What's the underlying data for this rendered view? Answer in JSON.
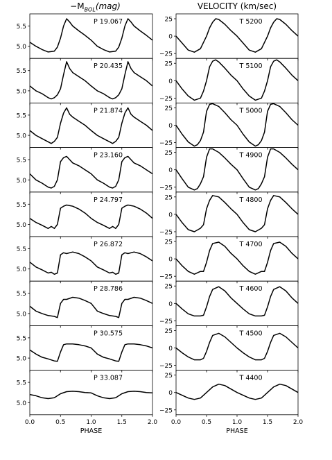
{
  "figure": {
    "left_title_prefix": "−M",
    "left_title_sub": "BOL",
    "left_title_suffix": "(mag)",
    "right_title": "VELOCITY (km/sec)",
    "x_label": "PHASE"
  },
  "colors": {
    "line": "#000000",
    "axes": "#000000",
    "background": "#ffffff"
  },
  "chart_data": [
    {
      "type": "line",
      "title": "−M_BOL(mag)",
      "xlabel": "PHASE",
      "xlim": [
        0.0,
        2.0
      ],
      "xticks": [
        "0.0",
        "0.5",
        "1.0",
        "1.5",
        "2.0"
      ],
      "yticks": [
        "5.0",
        "5.5"
      ],
      "ylim": [
        4.7,
        5.8
      ],
      "grid": false,
      "panels": [
        {
          "label": "P 19.067",
          "x": [
            0.0,
            0.1,
            0.2,
            0.3,
            0.4,
            0.45,
            0.5,
            0.55,
            0.6,
            0.65,
            0.7,
            0.8,
            0.9,
            1.0,
            1.1,
            1.2,
            1.3
          ],
          "y": [
            5.1,
            5.0,
            4.92,
            4.86,
            4.88,
            4.98,
            5.2,
            5.5,
            5.68,
            5.6,
            5.5,
            5.38,
            5.27,
            5.15,
            5.05,
            4.95,
            4.86
          ]
        },
        {
          "label": "P 20.435",
          "x": [
            0.0,
            0.1,
            0.2,
            0.3,
            0.35,
            0.4,
            0.45,
            0.5,
            0.55,
            0.6,
            0.65,
            0.7,
            0.8,
            0.9,
            1.0,
            1.1,
            1.2,
            1.3
          ],
          "y": [
            5.12,
            5.0,
            4.93,
            4.83,
            4.8,
            4.83,
            4.9,
            5.05,
            5.4,
            5.72,
            5.55,
            5.45,
            5.35,
            5.25,
            5.12,
            5.0,
            4.9,
            4.8
          ]
        },
        {
          "label": "P 21.874",
          "x": [
            0.0,
            0.1,
            0.2,
            0.3,
            0.35,
            0.4,
            0.45,
            0.5,
            0.55,
            0.6,
            0.65,
            0.7,
            0.8,
            0.9,
            1.0,
            1.1,
            1.2,
            1.35
          ],
          "y": [
            5.12,
            5.0,
            4.92,
            4.84,
            4.8,
            4.85,
            4.95,
            5.3,
            5.55,
            5.68,
            5.52,
            5.45,
            5.35,
            5.25,
            5.12,
            5.0,
            4.9,
            4.8
          ]
        },
        {
          "label": "P 23.160",
          "x": [
            0.0,
            0.1,
            0.2,
            0.3,
            0.35,
            0.4,
            0.45,
            0.5,
            0.55,
            0.6,
            0.65,
            0.7,
            0.8,
            0.9,
            1.0,
            1.1,
            1.2,
            1.35
          ],
          "y": [
            5.15,
            5.0,
            4.92,
            4.82,
            4.8,
            4.84,
            5.0,
            5.45,
            5.55,
            5.58,
            5.5,
            5.42,
            5.35,
            5.25,
            5.15,
            5.03,
            4.92,
            4.8
          ]
        },
        {
          "label": "P 24.797",
          "x": [
            0.0,
            0.1,
            0.2,
            0.3,
            0.35,
            0.4,
            0.45,
            0.5,
            0.55,
            0.6,
            0.7,
            0.8,
            0.9,
            1.0,
            1.1,
            1.2,
            1.35
          ],
          "y": [
            5.15,
            5.05,
            4.98,
            4.9,
            4.95,
            4.9,
            5.0,
            5.4,
            5.45,
            5.48,
            5.45,
            5.38,
            5.28,
            5.15,
            5.05,
            4.95,
            4.88
          ]
        },
        {
          "label": "P 26.872",
          "x": [
            0.0,
            0.1,
            0.2,
            0.3,
            0.35,
            0.4,
            0.45,
            0.5,
            0.55,
            0.6,
            0.7,
            0.8,
            0.9,
            1.0,
            1.1,
            1.2,
            1.35
          ],
          "y": [
            5.17,
            5.05,
            4.98,
            4.9,
            4.92,
            4.87,
            4.9,
            5.35,
            5.4,
            5.38,
            5.42,
            5.38,
            5.3,
            5.2,
            5.1,
            5.0,
            4.9
          ]
        },
        {
          "label": "P 28.786",
          "x": [
            0.0,
            0.1,
            0.2,
            0.3,
            0.4,
            0.45,
            0.5,
            0.55,
            0.6,
            0.7,
            0.8,
            0.9,
            1.0,
            1.1,
            1.2,
            1.35
          ],
          "y": [
            5.18,
            5.06,
            5.0,
            4.95,
            4.93,
            4.9,
            5.25,
            5.35,
            5.35,
            5.4,
            5.38,
            5.32,
            5.25,
            5.15,
            5.05,
            4.93
          ]
        },
        {
          "label": "P 30.575",
          "x": [
            0.0,
            0.1,
            0.2,
            0.3,
            0.4,
            0.45,
            0.5,
            0.55,
            0.6,
            0.7,
            0.8,
            0.9,
            1.0,
            1.1,
            1.2,
            1.35
          ],
          "y": [
            5.2,
            5.1,
            5.02,
            4.98,
            4.93,
            4.92,
            5.15,
            5.33,
            5.35,
            5.35,
            5.33,
            5.3,
            5.25,
            5.15,
            5.05,
            4.95
          ]
        },
        {
          "label": "P 33.087",
          "x": [
            0.0,
            0.1,
            0.2,
            0.3,
            0.4,
            0.5,
            0.6,
            0.7,
            0.8,
            0.9,
            1.0,
            1.1,
            1.2,
            1.3
          ],
          "y": [
            5.2,
            5.17,
            5.12,
            5.1,
            5.12,
            5.22,
            5.27,
            5.28,
            5.27,
            5.25,
            5.24,
            5.2,
            5.15,
            5.1
          ]
        }
      ]
    },
    {
      "type": "line",
      "title": "VELOCITY (km/sec)",
      "xlabel": "PHASE",
      "xlim": [
        0.0,
        2.0
      ],
      "xticks": [
        "0.0",
        "0.5",
        "1.0",
        "1.5",
        "2.0"
      ],
      "yticks": [
        "−25",
        "0",
        "25"
      ],
      "ylim": [
        -32,
        32
      ],
      "grid": false,
      "panels": [
        {
          "label": "T 5200",
          "x": [
            0.0,
            0.1,
            0.2,
            0.3,
            0.4,
            0.5,
            0.55,
            0.6,
            0.65,
            0.7,
            0.8,
            0.9,
            1.0,
            1.1,
            1.2,
            1.3
          ],
          "y": [
            0,
            -10,
            -20,
            -23,
            -18,
            0,
            12,
            20,
            25,
            24,
            17,
            8,
            0,
            -10,
            -20,
            -23
          ]
        },
        {
          "label": "T 5100",
          "x": [
            0.0,
            0.1,
            0.2,
            0.3,
            0.4,
            0.45,
            0.5,
            0.55,
            0.6,
            0.65,
            0.7,
            0.8,
            0.9,
            1.0,
            1.1,
            1.2,
            1.3
          ],
          "y": [
            0,
            -12,
            -22,
            -28,
            -25,
            -15,
            0,
            20,
            28,
            30,
            27,
            18,
            8,
            0,
            -12,
            -22,
            -28
          ]
        },
        {
          "label": "T 5000",
          "x": [
            0.0,
            0.1,
            0.2,
            0.3,
            0.35,
            0.4,
            0.45,
            0.5,
            0.55,
            0.6,
            0.7,
            0.8,
            0.9,
            1.0,
            1.1,
            1.2,
            1.3
          ],
          "y": [
            0,
            -13,
            -24,
            -30,
            -28,
            -22,
            -10,
            20,
            30,
            31,
            27,
            18,
            8,
            0,
            -13,
            -24,
            -30
          ]
        },
        {
          "label": "T 4900",
          "x": [
            0.0,
            0.1,
            0.2,
            0.3,
            0.35,
            0.4,
            0.45,
            0.5,
            0.55,
            0.6,
            0.7,
            0.8,
            0.9,
            1.0,
            1.1,
            1.2,
            1.3
          ],
          "y": [
            0,
            -13,
            -25,
            -29,
            -27,
            -20,
            -10,
            18,
            30,
            30,
            25,
            17,
            8,
            0,
            -13,
            -25,
            -29
          ]
        },
        {
          "label": "T 4800",
          "x": [
            0.0,
            0.1,
            0.2,
            0.3,
            0.4,
            0.45,
            0.5,
            0.55,
            0.6,
            0.7,
            0.8,
            0.9,
            1.0,
            1.1,
            1.2,
            1.3
          ],
          "y": [
            0,
            -12,
            -22,
            -25,
            -20,
            -15,
            8,
            20,
            27,
            25,
            17,
            8,
            0,
            -12,
            -22,
            -25
          ]
        },
        {
          "label": "T 4700",
          "x": [
            0.0,
            0.1,
            0.2,
            0.3,
            0.4,
            0.45,
            0.5,
            0.55,
            0.6,
            0.7,
            0.8,
            0.9,
            1.0,
            1.1,
            1.2,
            1.3
          ],
          "y": [
            0,
            -10,
            -18,
            -22,
            -18,
            -18,
            -5,
            12,
            22,
            24,
            18,
            8,
            0,
            -10,
            -18,
            -22
          ]
        },
        {
          "label": "T 4600",
          "x": [
            0.0,
            0.1,
            0.2,
            0.3,
            0.4,
            0.45,
            0.5,
            0.55,
            0.6,
            0.7,
            0.8,
            0.9,
            1.0,
            1.1,
            1.2,
            1.3
          ],
          "y": [
            0,
            -8,
            -15,
            -18,
            -18,
            -17,
            -5,
            10,
            20,
            24,
            18,
            8,
            0,
            -8,
            -15,
            -18
          ]
        },
        {
          "label": "T 4500",
          "x": [
            0.0,
            0.1,
            0.2,
            0.3,
            0.4,
            0.45,
            0.5,
            0.55,
            0.6,
            0.7,
            0.8,
            0.9,
            1.0,
            1.1,
            1.2,
            1.3
          ],
          "y": [
            0,
            -7,
            -13,
            -17,
            -17,
            -15,
            -5,
            8,
            18,
            21,
            16,
            8,
            0,
            -7,
            -13,
            -17
          ]
        },
        {
          "label": "T 4400",
          "x": [
            0.0,
            0.1,
            0.2,
            0.3,
            0.4,
            0.5,
            0.6,
            0.7,
            0.8,
            0.9,
            1.0,
            1.1,
            1.2,
            1.3
          ],
          "y": [
            0,
            -4,
            -8,
            -10,
            -8,
            0,
            8,
            12,
            10,
            5,
            0,
            -4,
            -8,
            -10
          ]
        }
      ]
    }
  ]
}
